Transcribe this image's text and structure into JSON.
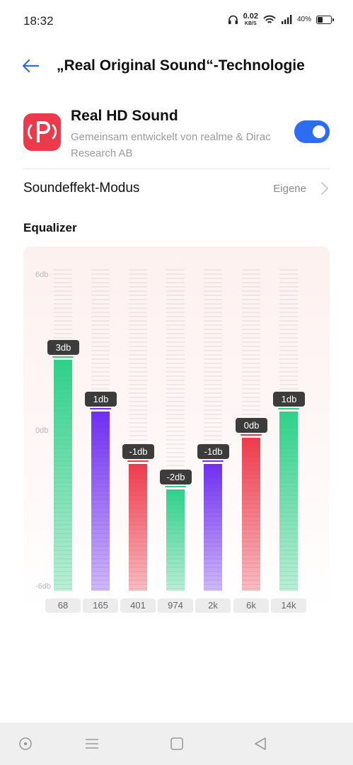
{
  "status_bar": {
    "time": "18:32",
    "net_speed_value": "0.02",
    "net_speed_unit": "KB/S",
    "battery_percent": "40%",
    "icons": [
      "headphones-icon",
      "wifi-icon",
      "signal-icon",
      "battery-icon"
    ]
  },
  "header": {
    "back_icon": "back-arrow-icon",
    "title": "„Real Original Sound“-Technologie"
  },
  "real_hd": {
    "icon": "real-sound-logo-icon",
    "title": "Real HD Sound",
    "description": "Gemeinsam entwickelt von realme & Dirac Research AB",
    "enabled": true
  },
  "sound_mode": {
    "label": "Soundeffekt-Modus",
    "value": "Eigene"
  },
  "equalizer": {
    "heading": "Equalizer",
    "y_axis": {
      "top": "6db",
      "middle": "0db",
      "bottom": "-6db",
      "min": -6,
      "max": 6
    },
    "bands": [
      {
        "freq": "68",
        "label": "3db",
        "value": 3,
        "color": "#2fd18a"
      },
      {
        "freq": "165",
        "label": "1db",
        "value": 1,
        "color": "#6f2ff0"
      },
      {
        "freq": "401",
        "label": "-1db",
        "value": -1,
        "color": "#ee3b4c"
      },
      {
        "freq": "974",
        "label": "-2db",
        "value": -2,
        "color": "#2fd18a"
      },
      {
        "freq": "2k",
        "label": "-1db",
        "value": -1,
        "color": "#6f2ff0"
      },
      {
        "freq": "6k",
        "label": "0db",
        "value": 0,
        "color": "#ee3b4c"
      },
      {
        "freq": "14k",
        "label": "1db",
        "value": 1,
        "color": "#2fd18a"
      }
    ]
  },
  "nav_bar": {
    "buttons": [
      "assistant-icon",
      "menu-icon",
      "home-icon",
      "back-icon"
    ]
  }
}
